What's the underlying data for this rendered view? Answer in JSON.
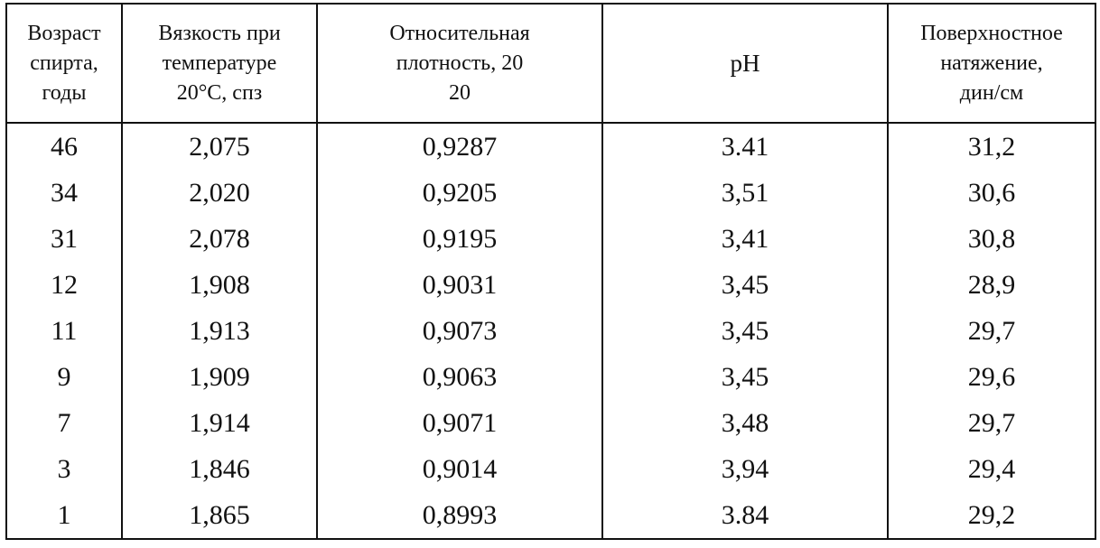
{
  "table": {
    "headers": [
      [
        "Возраст",
        "спирта,",
        "годы"
      ],
      [
        "Вязкость при",
        "температуре",
        "20°С, спз"
      ],
      [
        "Относительная",
        "плотность, 20",
        "20"
      ],
      [
        "рН"
      ],
      [
        "Поверхностное",
        "натяжение,",
        "дин/см"
      ]
    ],
    "rows": [
      [
        "46",
        "2,075",
        "0,9287",
        "3.41",
        "31,2"
      ],
      [
        "34",
        "2,020",
        "0,9205",
        "3,51",
        "30,6"
      ],
      [
        "31",
        "2,078",
        "0,9195",
        "3,41",
        "30,8"
      ],
      [
        "12",
        "1,908",
        "0,9031",
        "3,45",
        "28,9"
      ],
      [
        "11",
        "1,913",
        "0,9073",
        "3,45",
        "29,7"
      ],
      [
        "9",
        "1,909",
        "0,9063",
        "3,45",
        "29,6"
      ],
      [
        "7",
        "1,914",
        "0,9071",
        "3,48",
        "29,7"
      ],
      [
        "3",
        "1,846",
        "0,9014",
        "3,94",
        "29,4"
      ],
      [
        "1",
        "1,865",
        "0,8993",
        "3.84",
        "29,2"
      ]
    ]
  }
}
